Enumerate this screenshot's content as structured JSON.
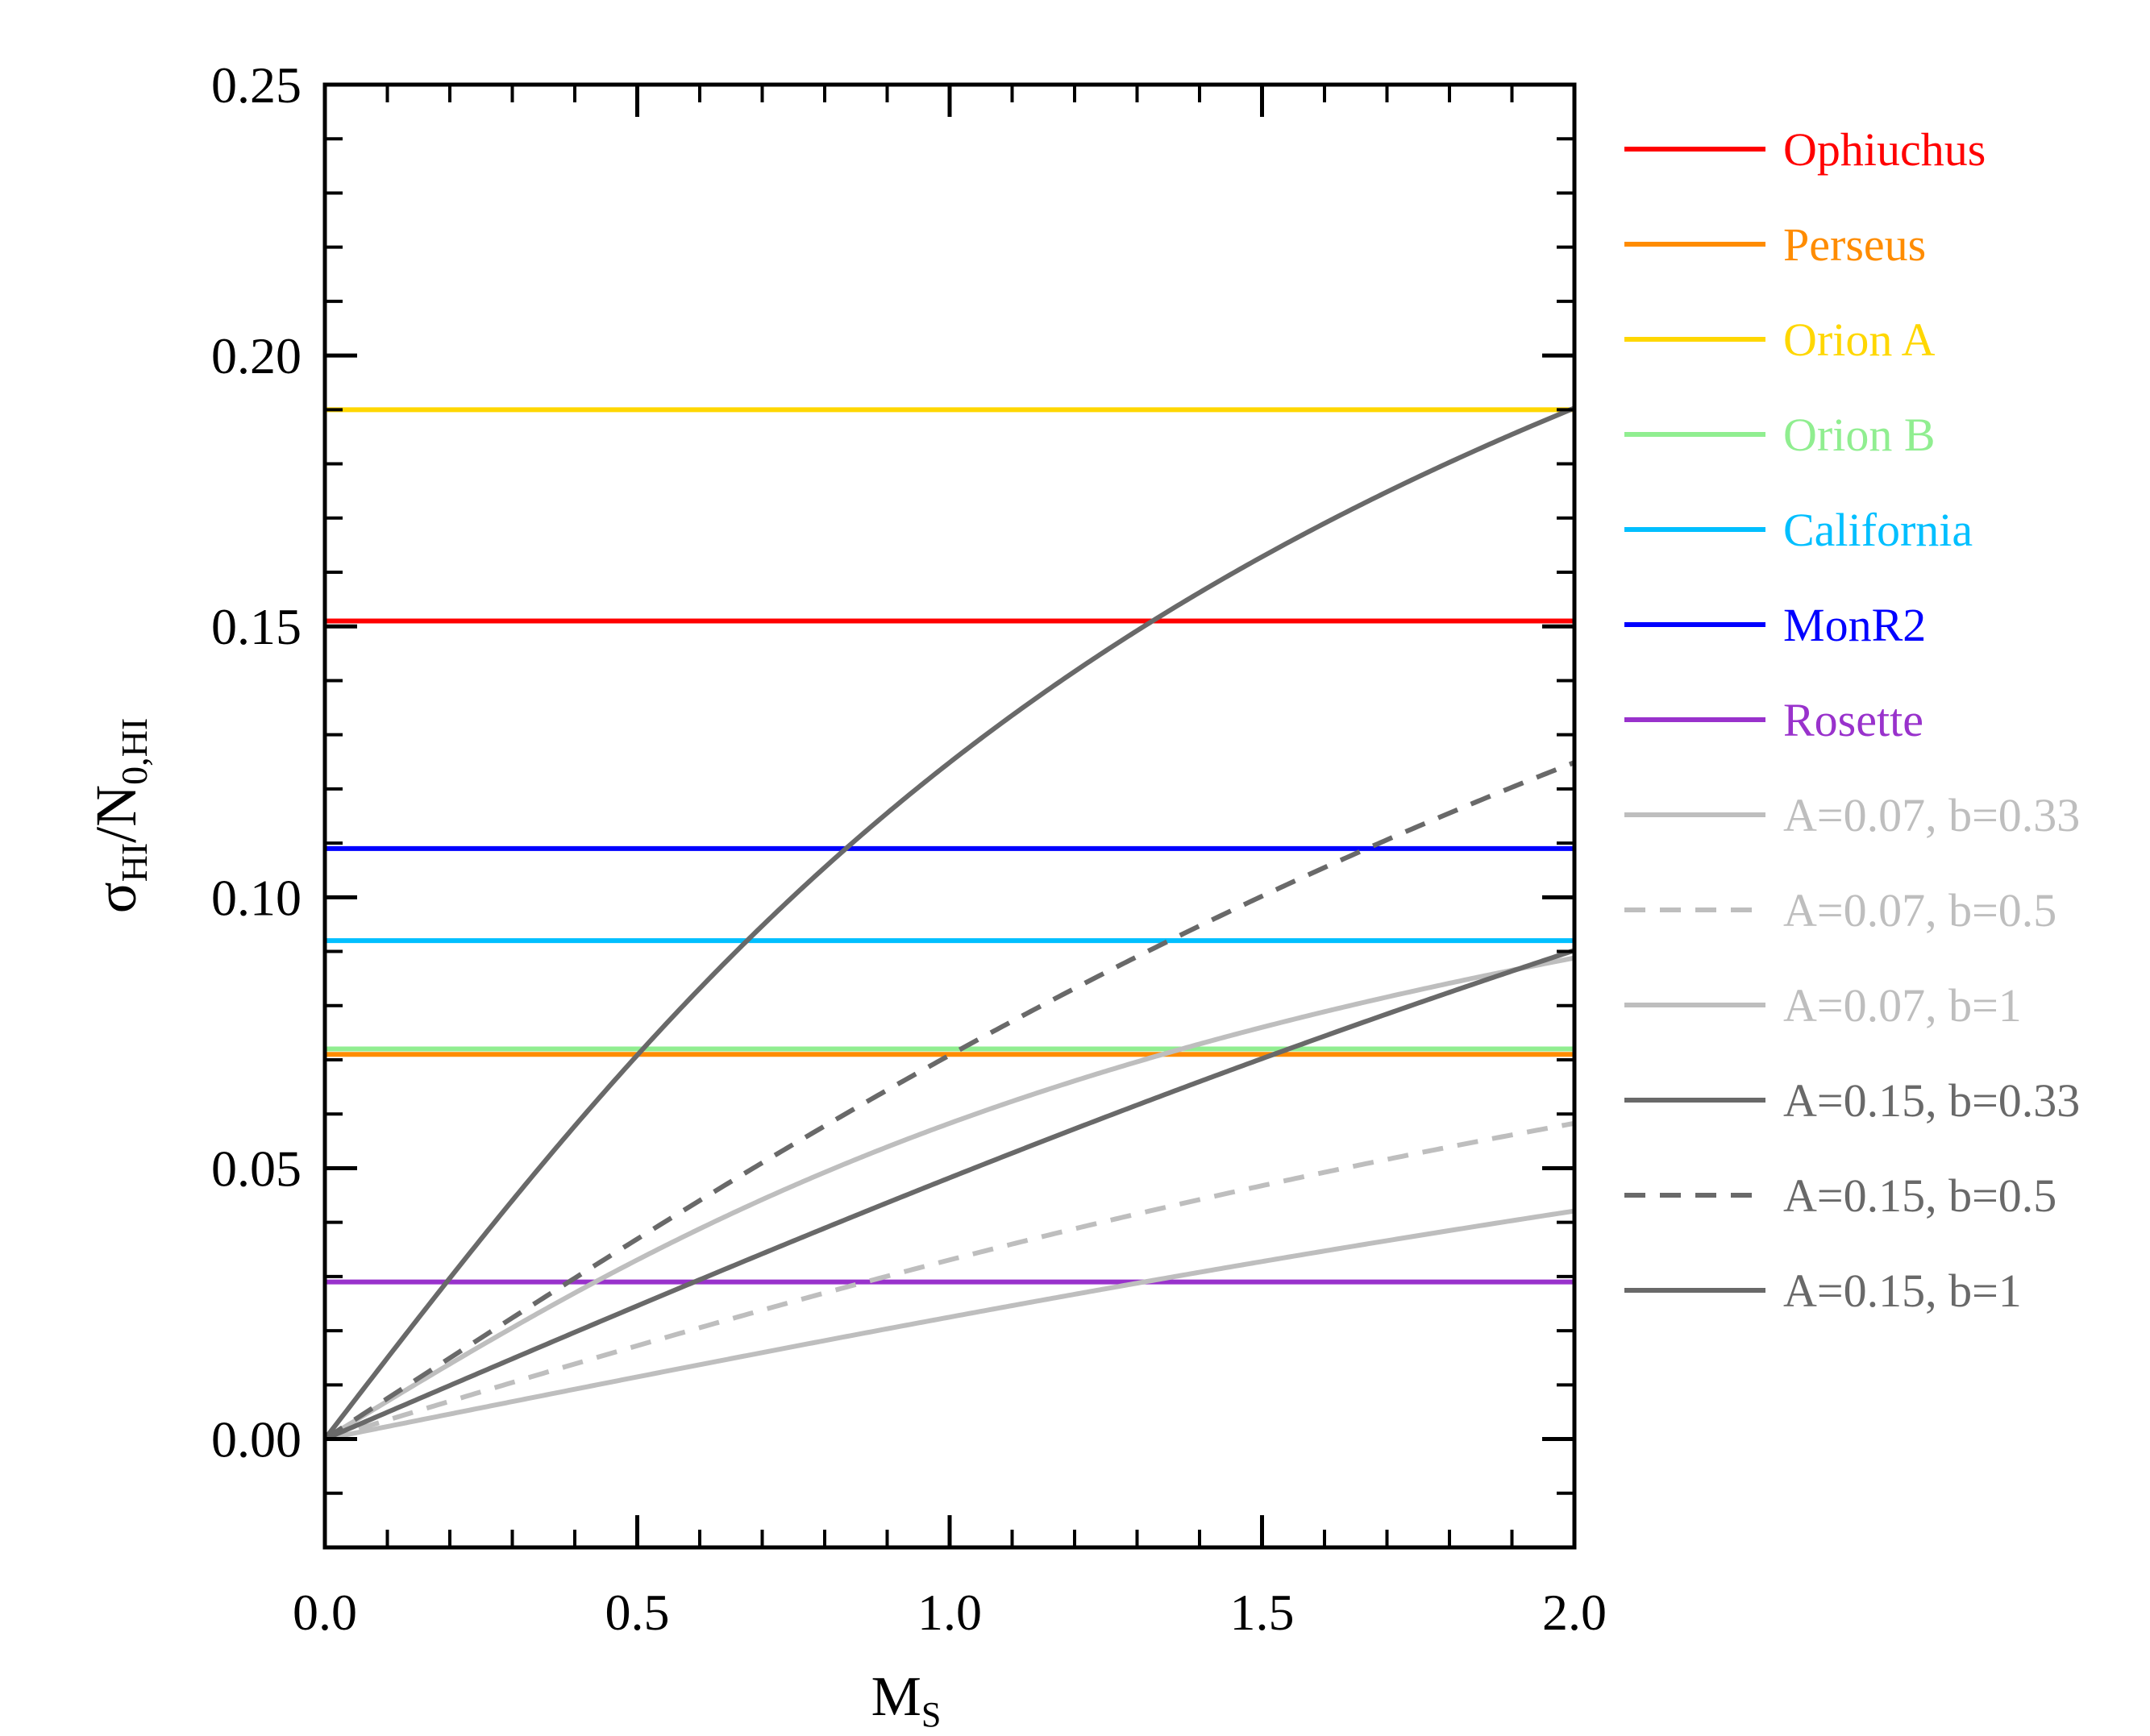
{
  "chart_data": {
    "type": "line",
    "xlabel": {
      "main": "M",
      "sub": "S"
    },
    "ylabel": {
      "main": "σ",
      "sub1": "HI",
      "slash": "/N",
      "sub2": "0,HI"
    },
    "xlim": [
      0.0,
      2.0
    ],
    "ylim": [
      -0.02,
      0.25
    ],
    "xticks": [
      "0.0",
      "0.5",
      "1.0",
      "1.5",
      "2.0"
    ],
    "yticks": [
      "0.00",
      "0.05",
      "0.10",
      "0.15",
      "0.20",
      "0.25"
    ],
    "grid": false,
    "legend_position": "right",
    "observed": [
      {
        "name": "Ophiuchus",
        "value": 0.151,
        "color": "#ff0000"
      },
      {
        "name": "Perseus",
        "value": 0.071,
        "color": "#ff8c00"
      },
      {
        "name": "Orion A",
        "value": 0.19,
        "color": "#ffd700"
      },
      {
        "name": "Orion B",
        "value": 0.072,
        "color": "#90ee90"
      },
      {
        "name": "California",
        "value": 0.092,
        "color": "#00bfff"
      },
      {
        "name": "MonR2",
        "value": 0.109,
        "color": "#0000ff"
      },
      {
        "name": "Rosette",
        "value": 0.029,
        "color": "#9932cc"
      }
    ],
    "models": [
      {
        "name": "A=0.07, b=0.33",
        "A": 0.07,
        "b": 0.33,
        "color": "#bebebe",
        "dash": false
      },
      {
        "name": "A=0.07, b=0.5",
        "A": 0.07,
        "b": 0.5,
        "color": "#bebebe",
        "dash": true
      },
      {
        "name": "A=0.07, b=1",
        "A": 0.07,
        "b": 1,
        "color": "#bebebe",
        "dash": false
      },
      {
        "name": "A=0.15, b=0.33",
        "A": 0.15,
        "b": 0.33,
        "color": "#696969",
        "dash": false
      },
      {
        "name": "A=0.15, b=0.5",
        "A": 0.15,
        "b": 0.5,
        "color": "#696969",
        "dash": true
      },
      {
        "name": "A=0.15, b=1",
        "A": 0.15,
        "b": 1,
        "color": "#696969",
        "dash": false
      }
    ]
  }
}
